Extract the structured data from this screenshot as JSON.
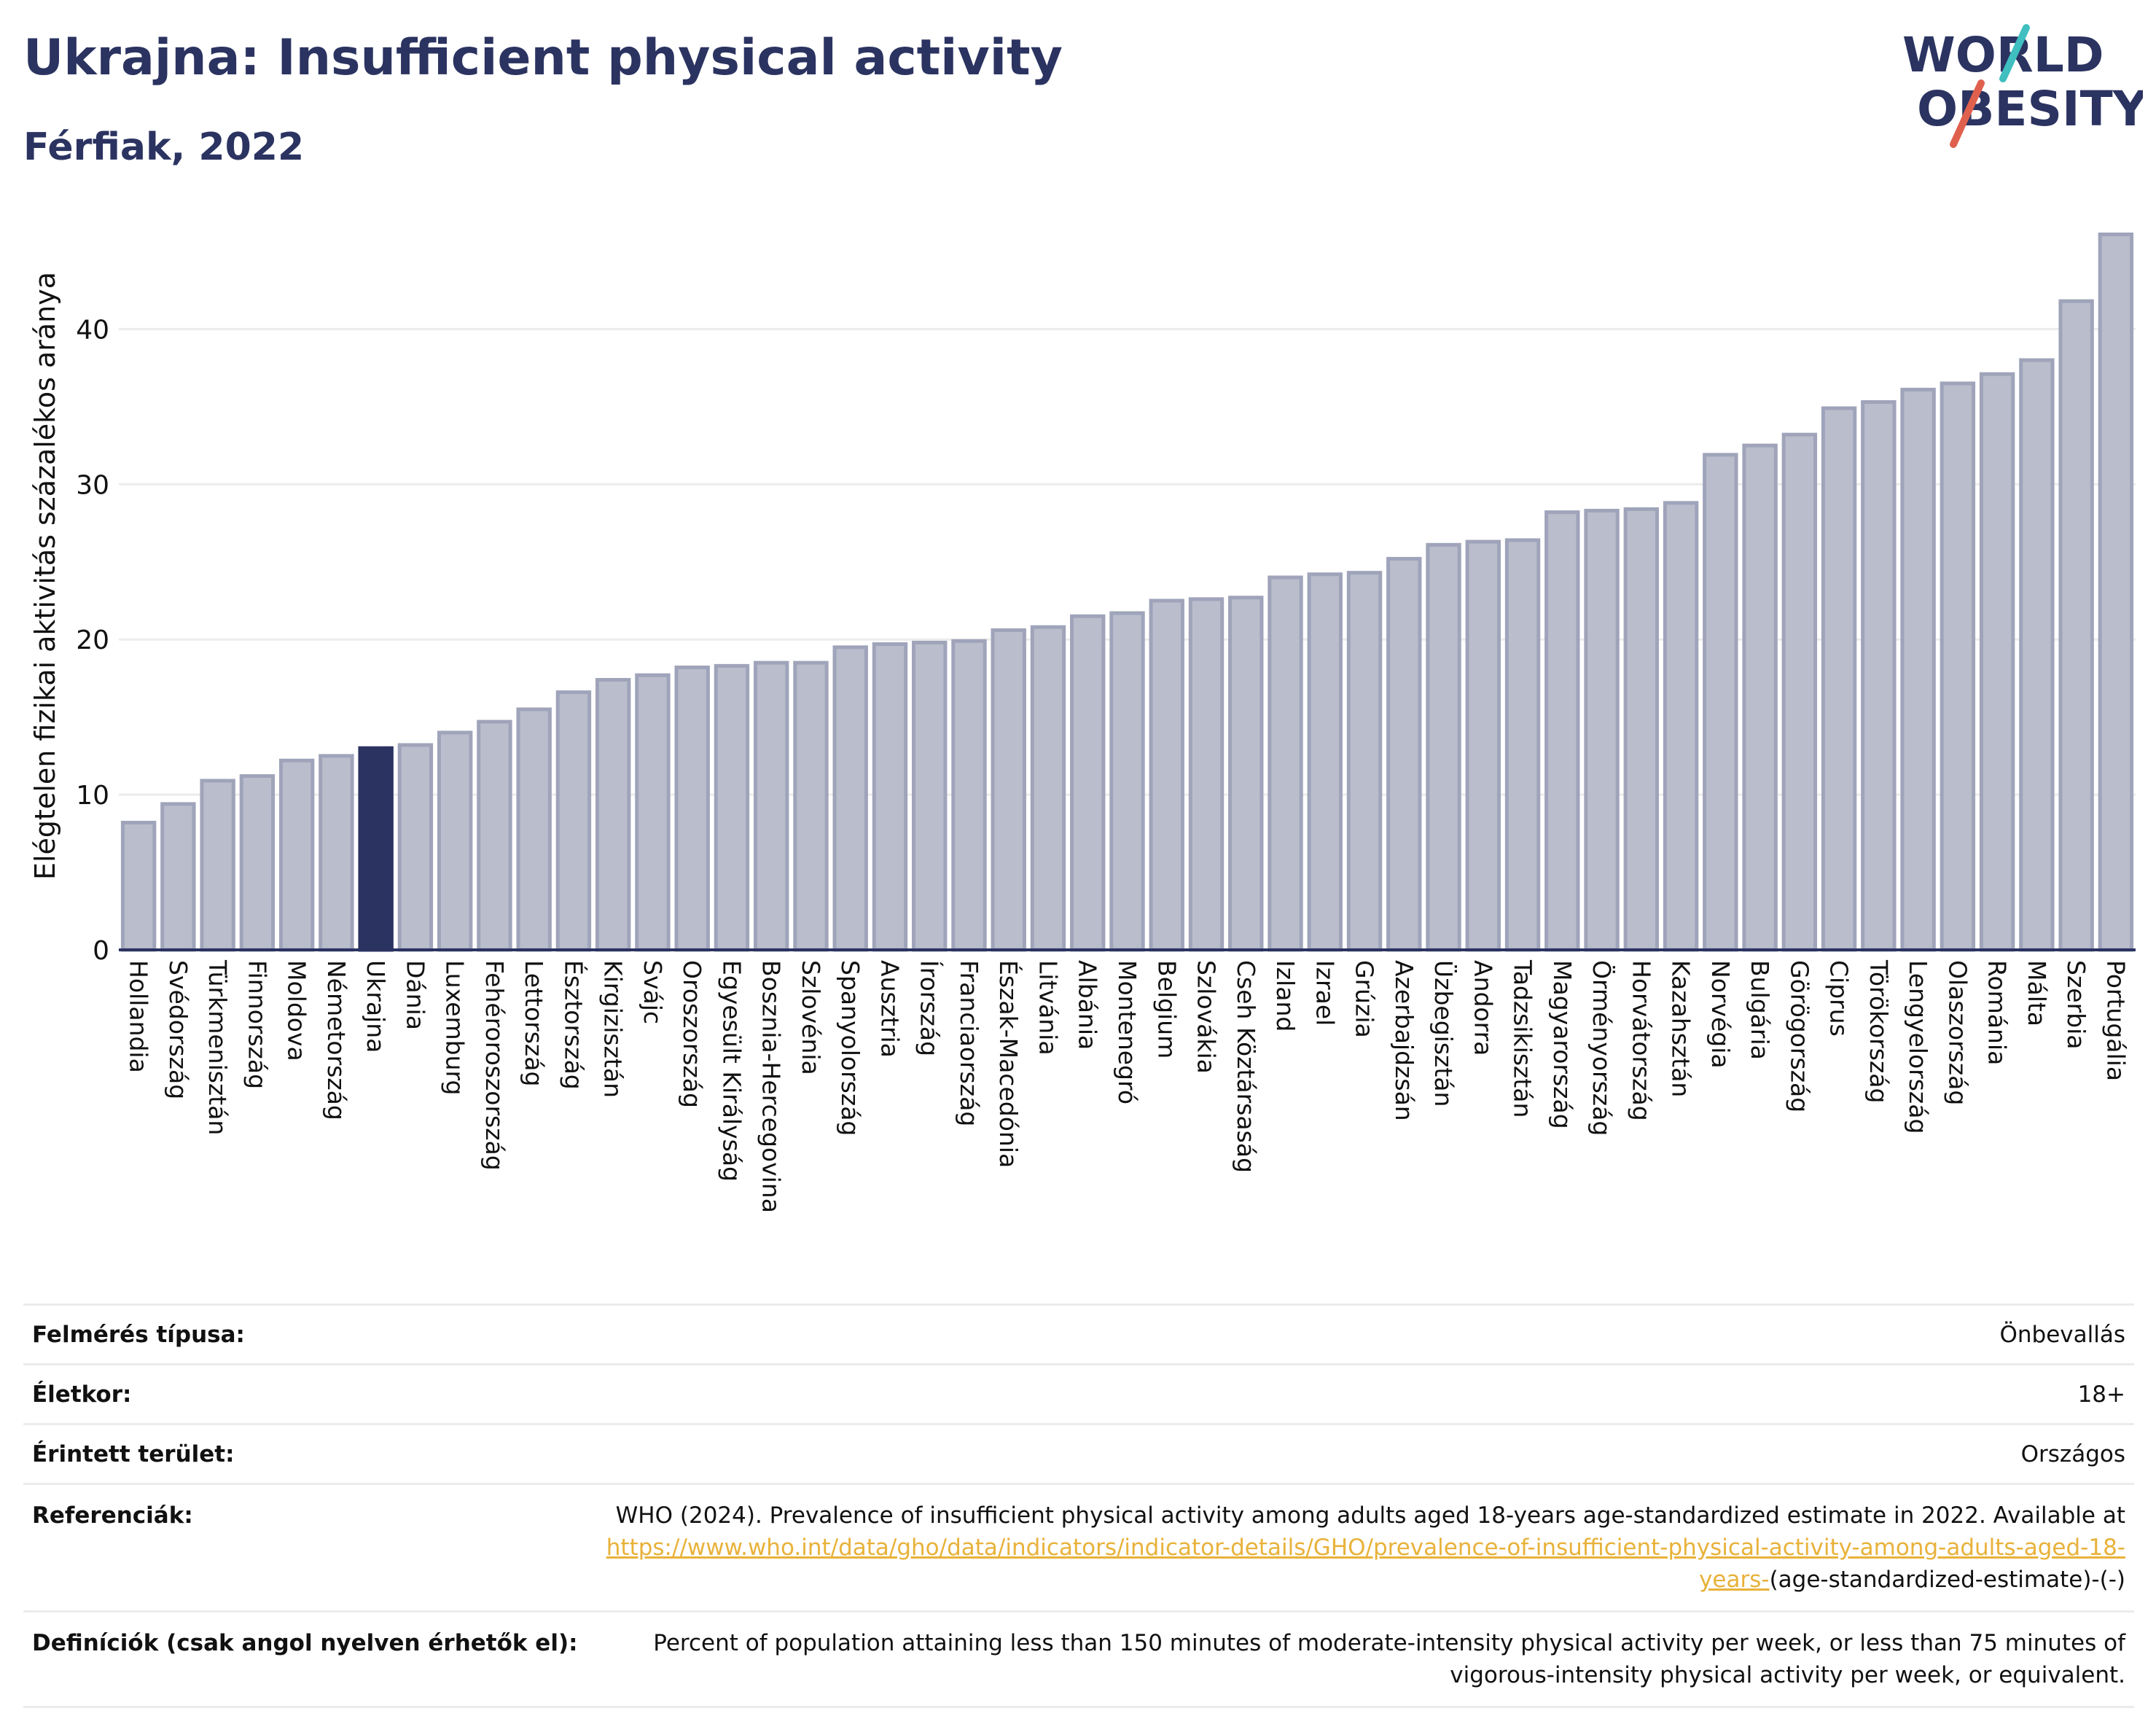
{
  "header": {
    "title": "Ukrajna: Insufficient physical activity",
    "subtitle": "Férfiak, 2022",
    "logo_line1": "WORLD",
    "logo_line2": "OBESITY"
  },
  "colors": {
    "bar": "#b9bdcc",
    "bar_border": "#9fa4ba",
    "highlight": "#2b3361",
    "title": "#2b3361",
    "link": "#e8b23a",
    "logo_teal": "#3fbfbf",
    "logo_red": "#e0604e"
  },
  "chart_data": {
    "type": "bar",
    "ylabel": "Elégtelen fizikai aktivitás százalékos aránya",
    "ylim": [
      0,
      46.5
    ],
    "yticks": [
      0,
      10,
      20,
      30,
      40
    ],
    "grid": true,
    "highlight": "Ukrajna",
    "categories": [
      "Hollandia",
      "Svédország",
      "Türkmenisztán",
      "Finnország",
      "Moldova",
      "Németország",
      "Ukrajna",
      "Dánia",
      "Luxemburg",
      "Fehéroroszország",
      "Lettország",
      "Észtország",
      "Kirgizisztán",
      "Svájc",
      "Oroszország",
      "Egyesült Királyság",
      "Bosznia-Hercegovina",
      "Szlovénia",
      "Spanyolország",
      "Ausztria",
      "Írország",
      "Franciaország",
      "Észak-Macedónia",
      "Litvánia",
      "Albánia",
      "Montenegró",
      "Belgium",
      "Szlovákia",
      "Cseh Köztársaság",
      "Izland",
      "Izrael",
      "Grúzia",
      "Azerbajdzsán",
      "Üzbegisztán",
      "Andorra",
      "Tadzsikisztán",
      "Magyarország",
      "Örményország",
      "Horvátország",
      "Kazahsztán",
      "Norvégia",
      "Bulgária",
      "Görögország",
      "Ciprus",
      "Törökország",
      "Lengyelország",
      "Olaszország",
      "Románia",
      "Málta",
      "Szerbia",
      "Portugália"
    ],
    "values": [
      8.2,
      9.4,
      10.9,
      11.2,
      12.2,
      12.5,
      13.0,
      13.2,
      14.0,
      14.7,
      15.5,
      16.6,
      17.4,
      17.7,
      18.2,
      18.3,
      18.5,
      18.5,
      19.5,
      19.7,
      19.8,
      19.9,
      20.6,
      20.8,
      21.5,
      21.7,
      22.5,
      22.6,
      22.7,
      24.0,
      24.2,
      24.3,
      25.2,
      26.1,
      26.3,
      26.4,
      28.2,
      28.3,
      28.4,
      28.8,
      31.9,
      32.5,
      33.2,
      34.9,
      35.3,
      36.1,
      36.5,
      37.1,
      38.0,
      41.8,
      46.1
    ]
  },
  "info": {
    "survey_label": "Felmérés típusa:",
    "survey_value": "Önbevallás",
    "age_label": "Életkor:",
    "age_value": "18+",
    "area_label": "Érintett terület:",
    "area_value": "Országos",
    "ref_label": "Referenciák:",
    "ref_text": "WHO (2024). Prevalence of insufficient physical activity among adults aged 18-years age-standardized estimate in 2022. Available at",
    "ref_link": "https://www.who.int/data/gho/data/indicators/indicator-details/GHO/prevalence-of-insufficient-physical-activity-among-adults-aged-18-years-",
    "ref_suffix": "(age-standardized-estimate)-(-)",
    "def_label": "Definíciók (csak angol nyelven érhetők el):",
    "def_text": "Percent of population attaining less than 150 minutes of moderate-intensity physical activity per week, or less than 75 minutes of vigorous-intensity physical activity per week, or equivalent."
  }
}
